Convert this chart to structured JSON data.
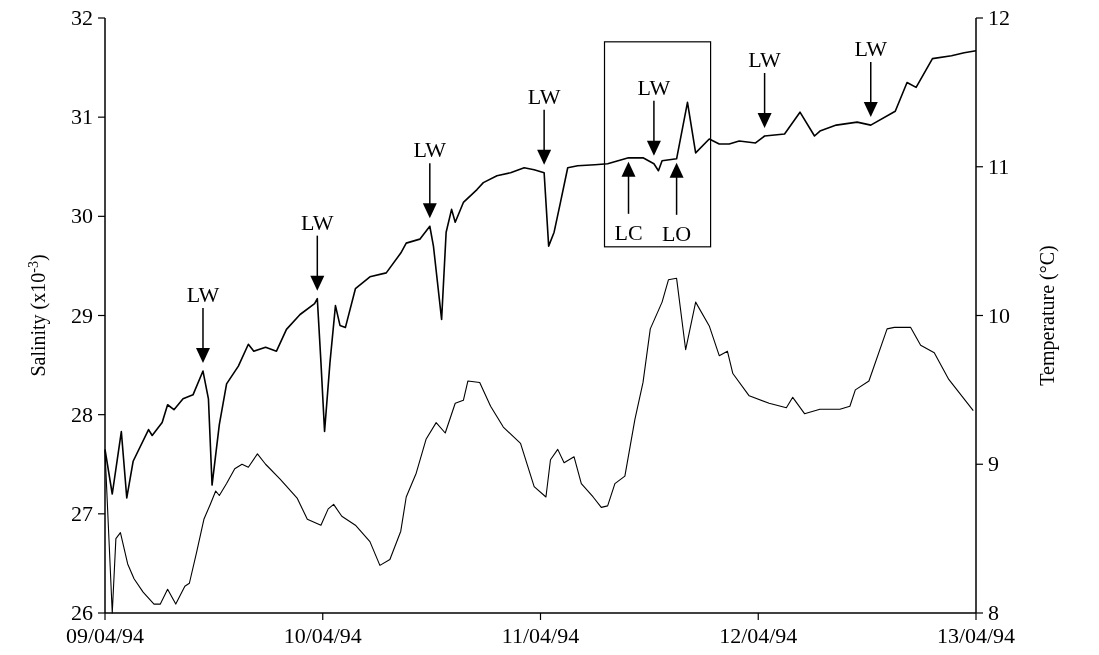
{
  "chart_data": {
    "type": "line",
    "ylabel": "Salinity (x10$^{-3}$)",
    "y2label": "Temperature (°C)",
    "xlim": [
      "1994-04-09",
      "1994-04-13"
    ],
    "xticks": [
      {
        "value": "1994-04-09",
        "label": "09/04/94"
      },
      {
        "value": "1994-04-10",
        "label": "10/04/94"
      },
      {
        "value": "1994-04-11",
        "label": "11/04/94"
      },
      {
        "value": "1994-04-12",
        "label": "12/04/94"
      },
      {
        "value": "1994-04-13",
        "label": "13/04/94"
      }
    ],
    "ylim": [
      26,
      32
    ],
    "yticks": [
      26,
      27,
      28,
      29,
      30,
      31,
      32
    ],
    "y2lim": [
      8,
      12
    ],
    "y2ticks": [
      8,
      9,
      10,
      11,
      12
    ],
    "grid": false,
    "series": [
      {
        "color": "#000000",
        "x": [
          "1994-04-09T00:00",
          "1994-04-09T00:48",
          "1994-04-09T01:48",
          "1994-04-09T02:24",
          "1994-04-09T03:06",
          "1994-04-09T04:48",
          "1994-04-09T05:12",
          "1994-04-09T06:18",
          "1994-04-09T06:54",
          "1994-04-09T07:36",
          "1994-04-09T08:36",
          "1994-04-09T09:42",
          "1994-04-09T10:48",
          "1994-04-09T11:24",
          "1994-04-09T11:48",
          "1994-04-09T12:36",
          "1994-04-09T13:24",
          "1994-04-09T14:42",
          "1994-04-09T15:48",
          "1994-04-09T16:24",
          "1994-04-09T17:42",
          "1994-04-09T18:54",
          "1994-04-09T20:00",
          "1994-04-09T21:30",
          "1994-04-09T23:06",
          "1994-04-09T23:24",
          "1994-04-09T23:48",
          "1994-04-10T00:12",
          "1994-04-10T00:48",
          "1994-04-10T01:24",
          "1994-04-10T01:54",
          "1994-04-10T02:30",
          "1994-04-10T03:36",
          "1994-04-10T05:12",
          "1994-04-10T07:00",
          "1994-04-10T08:36",
          "1994-04-10T09:12",
          "1994-04-10T10:42",
          "1994-04-10T11:48",
          "1994-04-10T12:12",
          "1994-04-10T13:06",
          "1994-04-10T13:36",
          "1994-04-10T14:12",
          "1994-04-10T14:36",
          "1994-04-10T15:30",
          "1994-04-10T17:00",
          "1994-04-10T17:42",
          "1994-04-10T19:12",
          "1994-04-10T20:42",
          "1994-04-10T22:12",
          "1994-04-10T23:18",
          "1994-04-11T00:24",
          "1994-04-11T00:54",
          "1994-04-11T01:30",
          "1994-04-11T02:12",
          "1994-04-11T03:00",
          "1994-04-11T04:06",
          "1994-04-11T06:00",
          "1994-04-11T07:24",
          "1994-04-11T09:42",
          "1994-04-11T11:18",
          "1994-04-11T12:30",
          "1994-04-11T13:00",
          "1994-04-11T13:24",
          "1994-04-11T15:00",
          "1994-04-11T16:12",
          "1994-04-11T17:06",
          "1994-04-11T18:36",
          "1994-04-11T19:42",
          "1994-04-11T20:48",
          "1994-04-11T21:54",
          "1994-04-11T23:42",
          "1994-04-12T00:42",
          "1994-04-12T02:54",
          "1994-04-12T04:36",
          "1994-04-12T06:12",
          "1994-04-12T06:48",
          "1994-04-12T08:36",
          "1994-04-12T10:54",
          "1994-04-12T12:24",
          "1994-04-12T15:06",
          "1994-04-12T16:24",
          "1994-04-12T17:24",
          "1994-04-12T19:12",
          "1994-04-12T21:18",
          "1994-04-12T22:42",
          "1994-04-13T00:00"
        ],
        "values": [
          27.65,
          27.2,
          27.83,
          27.16,
          27.53,
          27.85,
          27.79,
          27.92,
          28.1,
          28.05,
          28.16,
          28.2,
          28.44,
          28.16,
          27.29,
          27.9,
          28.31,
          28.49,
          28.71,
          28.64,
          28.68,
          28.64,
          28.86,
          29.01,
          29.12,
          29.17,
          28.53,
          27.83,
          28.53,
          29.1,
          28.9,
          28.88,
          29.27,
          29.39,
          29.43,
          29.63,
          29.73,
          29.77,
          29.9,
          29.7,
          28.96,
          29.84,
          30.07,
          29.94,
          30.14,
          30.27,
          30.34,
          30.41,
          30.44,
          30.49,
          30.47,
          30.44,
          29.7,
          29.84,
          30.14,
          30.49,
          30.51,
          30.52,
          30.53,
          30.59,
          30.59,
          30.53,
          30.46,
          30.56,
          30.58,
          31.15,
          30.64,
          30.78,
          30.73,
          30.73,
          30.76,
          30.74,
          30.81,
          30.83,
          31.05,
          30.81,
          30.86,
          30.92,
          30.95,
          30.92,
          31.06,
          31.35,
          31.3,
          31.59,
          31.62,
          31.65,
          31.67
        ]
      },
      {
        "color": "#000000",
        "axis": "y2",
        "x": [
          "1994-04-09T00:00",
          "1994-04-09T00:48",
          "1994-04-09T01:12",
          "1994-04-09T01:42",
          "1994-04-09T02:30",
          "1994-04-09T03:12",
          "1994-04-09T04:12",
          "1994-04-09T05:24",
          "1994-04-09T06:06",
          "1994-04-09T06:54",
          "1994-04-09T07:48",
          "1994-04-09T08:48",
          "1994-04-09T09:18",
          "1994-04-09T10:06",
          "1994-04-09T10:54",
          "1994-04-09T11:36",
          "1994-04-09T12:12",
          "1994-04-09T12:36",
          "1994-04-09T13:24",
          "1994-04-09T14:18",
          "1994-04-09T15:06",
          "1994-04-09T15:48",
          "1994-04-09T16:48",
          "1994-04-09T17:42",
          "1994-04-09T19:18",
          "1994-04-09T21:12",
          "1994-04-09T22:18",
          "1994-04-09T23:48",
          "1994-04-10T00:36",
          "1994-04-10T01:12",
          "1994-04-10T02:06",
          "1994-04-10T03:36",
          "1994-04-10T05:12",
          "1994-04-10T06:18",
          "1994-04-10T07:24",
          "1994-04-10T08:36",
          "1994-04-10T09:12",
          "1994-04-10T10:18",
          "1994-04-10T11:24",
          "1994-04-10T12:30",
          "1994-04-10T13:30",
          "1994-04-10T14:36",
          "1994-04-10T15:30",
          "1994-04-10T16:00",
          "1994-04-10T17:18",
          "1994-04-10T18:30",
          "1994-04-10T19:54",
          "1994-04-10T21:48",
          "1994-04-10T23:18",
          "1994-04-11T00:36",
          "1994-04-11T01:06",
          "1994-04-11T01:54",
          "1994-04-11T02:36",
          "1994-04-11T03:42",
          "1994-04-11T04:30",
          "1994-04-11T05:48",
          "1994-04-11T06:42",
          "1994-04-11T07:24",
          "1994-04-11T08:12",
          "1994-04-11T09:18",
          "1994-04-11T10:24",
          "1994-04-11T11:18",
          "1994-04-11T12:06",
          "1994-04-11T13:24",
          "1994-04-11T14:06",
          "1994-04-11T15:00",
          "1994-04-11T16:00",
          "1994-04-11T17:06",
          "1994-04-11T18:36",
          "1994-04-11T19:42",
          "1994-04-11T20:36",
          "1994-04-11T21:12",
          "1994-04-11T23:00",
          "1994-04-12T01:12",
          "1994-04-12T03:06",
          "1994-04-12T03:48",
          "1994-04-12T05:06",
          "1994-04-12T06:48",
          "1994-04-12T09:00",
          "1994-04-12T10:06",
          "1994-04-12T10:42",
          "1994-04-12T12:12",
          "1994-04-12T14:12",
          "1994-04-12T15:00",
          "1994-04-12T16:48",
          "1994-04-12T17:54",
          "1994-04-12T19:24",
          "1994-04-12T21:00",
          "1994-04-12T23:42"
        ],
        "values": [
          9.09,
          8.0,
          8.5,
          8.54,
          8.33,
          8.23,
          8.14,
          8.06,
          8.06,
          8.16,
          8.06,
          8.18,
          8.2,
          8.41,
          8.63,
          8.73,
          8.82,
          8.79,
          8.87,
          8.97,
          9.0,
          8.98,
          9.07,
          9.0,
          8.9,
          8.77,
          8.63,
          8.59,
          8.7,
          8.73,
          8.65,
          8.59,
          8.48,
          8.32,
          8.36,
          8.55,
          8.78,
          8.94,
          9.17,
          9.28,
          9.21,
          9.41,
          9.43,
          9.56,
          9.55,
          9.39,
          9.25,
          9.14,
          8.85,
          8.78,
          9.03,
          9.1,
          9.01,
          9.05,
          8.87,
          8.78,
          8.71,
          8.72,
          8.87,
          8.92,
          9.3,
          9.55,
          9.91,
          10.09,
          10.24,
          10.25,
          9.77,
          10.09,
          9.93,
          9.73,
          9.76,
          9.61,
          9.46,
          9.41,
          9.38,
          9.45,
          9.34,
          9.37,
          9.37,
          9.39,
          9.5,
          9.56,
          9.91,
          9.92,
          9.92,
          9.8,
          9.75,
          9.57,
          9.36
        ]
      }
    ],
    "annotations": [
      {
        "text": "LW",
        "x": "1994-04-09T10:48",
        "y": 28.44
      },
      {
        "text": "LW",
        "x": "1994-04-09T23:24",
        "y": 29.17
      },
      {
        "text": "LW",
        "x": "1994-04-10T11:48",
        "y": 29.9
      },
      {
        "text": "LW",
        "x": "1994-04-11T00:24",
        "y": 30.44
      },
      {
        "text": "LW",
        "x": "1994-04-11T12:30",
        "y": 30.53
      },
      {
        "text": "LW",
        "x": "1994-04-12T00:42",
        "y": 30.81
      },
      {
        "text": "LW",
        "x": "1994-04-12T12:24",
        "y": 30.92
      },
      {
        "text": "LC",
        "x": "1994-04-11T09:42",
        "y": 30.59
      },
      {
        "text": "LO",
        "x": "1994-04-11T15:00",
        "y": 30.58
      }
    ]
  }
}
